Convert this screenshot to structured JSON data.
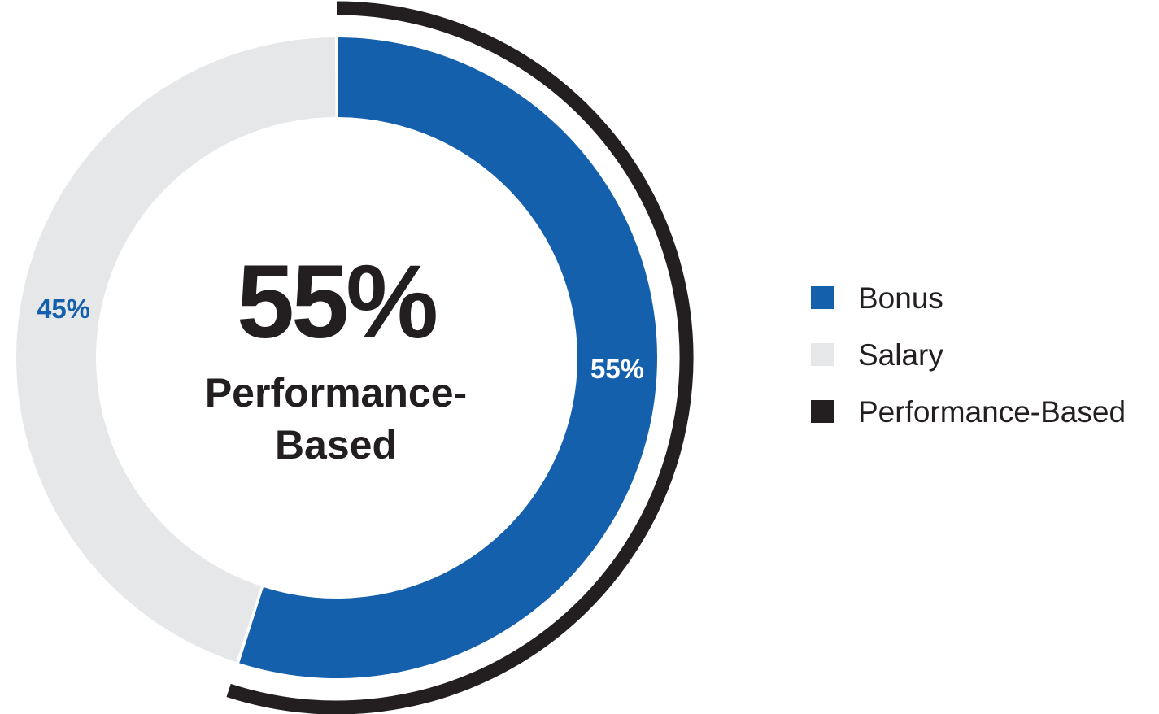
{
  "chart_data": {
    "type": "pie",
    "variant": "donut",
    "center_label": {
      "value": "55%",
      "line1": "Performance-",
      "line2": "Based"
    },
    "slices": [
      {
        "name": "Bonus",
        "value": 55,
        "label": "55%",
        "color": "#1560ac",
        "label_color": "#ffffff"
      },
      {
        "name": "Salary",
        "value": 45,
        "label": "45%",
        "color": "#e6e7e8",
        "label_color": "#1560ac"
      }
    ],
    "outer_arc": {
      "name": "Performance-Based",
      "value": 55,
      "color": "#231f20"
    },
    "legend": [
      {
        "label": "Bonus",
        "color": "#1560ac"
      },
      {
        "label": "Salary",
        "color": "#e6e7e8"
      },
      {
        "label": "Performance-Based",
        "color": "#231f20"
      }
    ]
  }
}
